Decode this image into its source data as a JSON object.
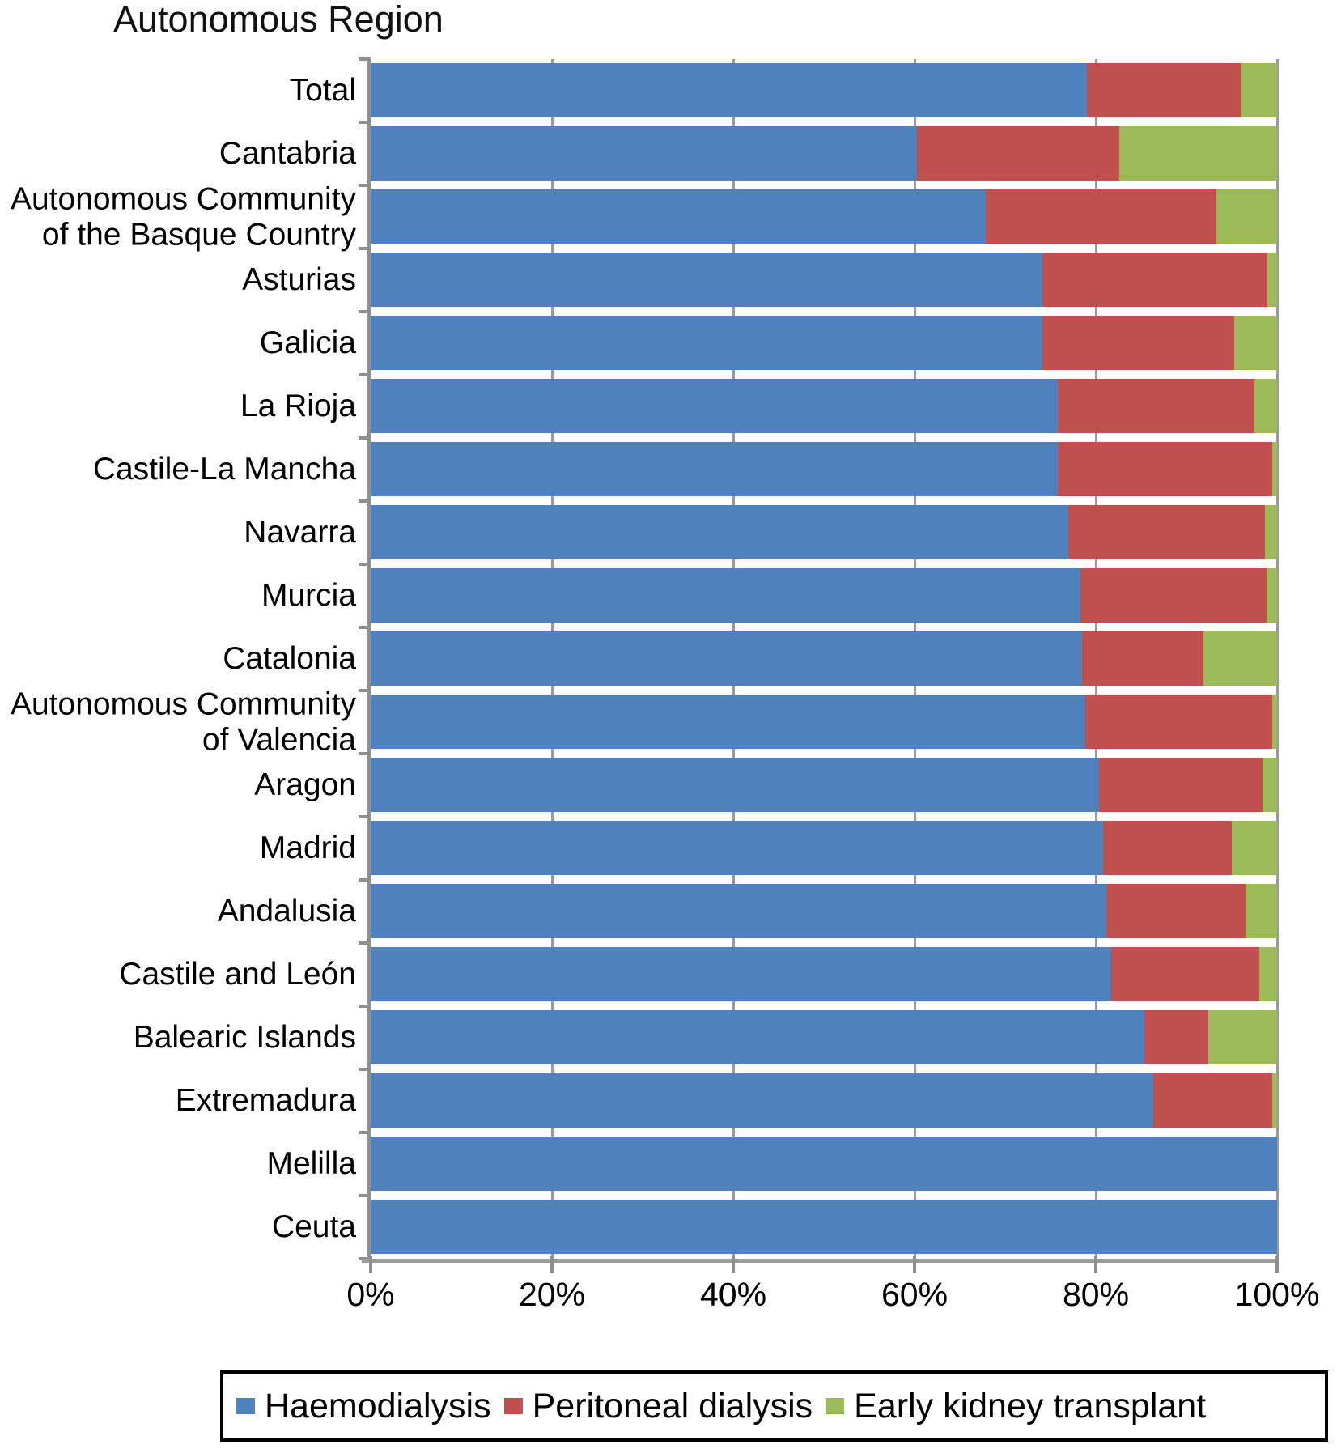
{
  "title": "Autonomous Region",
  "colors": {
    "haemodialysis": "#4F81BD",
    "peritoneal_dialysis": "#C0504D",
    "early_kidney_transplant": "#9BBB59",
    "gridline": "#9A9A9A",
    "axis": "#8F8F8F",
    "legend_border": "#000000"
  },
  "chart_data": {
    "type": "bar",
    "orientation": "horizontal",
    "stacked": true,
    "unit": "percent",
    "title": "Autonomous Region",
    "xlabel": "",
    "ylabel": "",
    "xlim": [
      0,
      100
    ],
    "grid": true,
    "legend_position": "bottom",
    "x_ticks": [
      "0%",
      "20%",
      "40%",
      "60%",
      "80%",
      "100%"
    ],
    "categories": [
      "Total",
      "Cantabria",
      "Autonomous Community\nof the Basque Country",
      "Asturias",
      "Galicia",
      "La Rioja",
      "Castile-La Mancha",
      "Navarra",
      "Murcia",
      "Catalonia",
      "Autonomous Community\nof Valencia",
      "Aragon",
      "Madrid",
      "Andalusia",
      "Castile and León",
      "Balearic Islands",
      "Extremadura",
      "Melilla",
      "Ceuta"
    ],
    "series": [
      {
        "name": "Haemodialysis",
        "color": "#4F81BD",
        "values": [
          79.0,
          60.3,
          67.9,
          74.1,
          74.1,
          75.8,
          75.8,
          77.0,
          78.3,
          78.5,
          78.8,
          80.4,
          80.8,
          81.2,
          81.7,
          85.4,
          86.3,
          100,
          100
        ]
      },
      {
        "name": "Peritoneal dialysis",
        "color": "#C0504D",
        "values": [
          17.0,
          22.3,
          25.4,
          24.8,
          21.2,
          21.7,
          23.7,
          21.7,
          20.5,
          13.4,
          20.7,
          18.0,
          14.2,
          15.3,
          16.3,
          7.0,
          13.2,
          0,
          0
        ]
      },
      {
        "name": "Early kidney transplant",
        "color": "#9BBB59",
        "values": [
          4.0,
          17.4,
          6.7,
          1.1,
          4.7,
          2.5,
          0.5,
          1.3,
          1.2,
          8.1,
          0.5,
          1.6,
          5.0,
          3.5,
          2.0,
          7.6,
          0.5,
          0,
          0
        ]
      }
    ]
  }
}
